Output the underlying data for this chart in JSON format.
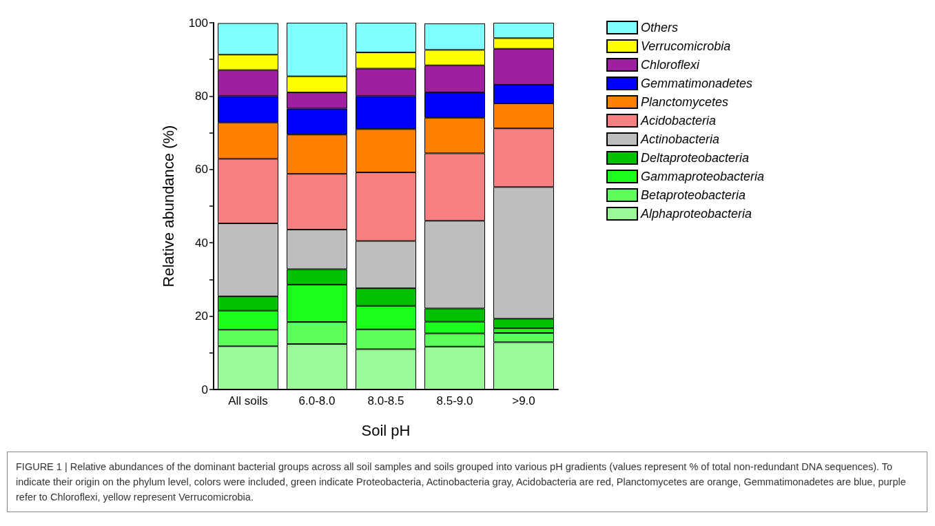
{
  "chart_data": {
    "type": "bar",
    "stacked": true,
    "xlabel": "Soil pH",
    "ylabel": "Relative abundance (%)",
    "categories": [
      "All soils",
      "6.0-8.0",
      "8.0-8.5",
      "8.5-9.0",
      ">9.0"
    ],
    "series": [
      {
        "name": "Alphaproteobacteria",
        "color": "#98fb98",
        "values": [
          11.8,
          12.4,
          11.0,
          11.7,
          12.9
        ]
      },
      {
        "name": "Betaproteobacteria",
        "color": "#5cff5c",
        "values": [
          4.5,
          6.0,
          5.4,
          3.6,
          2.5
        ]
      },
      {
        "name": "Gammaproteobacteria",
        "color": "#19ff19",
        "values": [
          5.2,
          10.2,
          6.4,
          3.2,
          1.3
        ]
      },
      {
        "name": "Deltaproteobacteria",
        "color": "#00c000",
        "values": [
          3.9,
          4.2,
          4.8,
          3.6,
          2.6
        ]
      },
      {
        "name": "Actinobacteria",
        "color": "#bebebe",
        "values": [
          19.9,
          10.8,
          12.9,
          23.9,
          35.9
        ]
      },
      {
        "name": "Acidobacteria",
        "color": "#f88080",
        "values": [
          17.6,
          15.2,
          18.7,
          18.4,
          16.0
        ]
      },
      {
        "name": "Planctomycetes",
        "color": "#ff8000",
        "values": [
          9.9,
          10.7,
          11.8,
          9.7,
          6.8
        ]
      },
      {
        "name": "Gemmatimonadetes",
        "color": "#0000ff",
        "values": [
          7.2,
          7.1,
          9.0,
          6.9,
          5.1
        ]
      },
      {
        "name": "Chloroflexi",
        "color": "#9e1fa0",
        "values": [
          7.1,
          4.4,
          7.5,
          7.4,
          9.8
        ]
      },
      {
        "name": "Verrucomicrobia",
        "color": "#ffff00",
        "values": [
          4.2,
          4.4,
          4.4,
          4.2,
          2.9
        ]
      },
      {
        "name": "Others",
        "color": "#80ffff",
        "values": [
          8.6,
          14.6,
          8.1,
          7.2,
          4.2
        ]
      }
    ],
    "ylim": [
      0,
      100
    ],
    "yticks": [
      0,
      {
        "value": 10,
        "label": null
      },
      20,
      {
        "value": 30,
        "label": null
      },
      40,
      {
        "value": 50,
        "label": null
      },
      60,
      {
        "value": 70,
        "label": null
      },
      80,
      {
        "value": 90,
        "label": null
      },
      100
    ],
    "grid": false,
    "legend": "right",
    "annotations": [
      "FIGURE 1 | Relative abundances of the dominant bacterial groups across all soil samples and soils grouped into various pH gradients (values represent % of total non-redundant DNA sequences). To indicate their origin on the phylum level, colors were included, green indicate Proteobacteria, Actinobacteria gray, Acidobacteria are red, Planctomycetes are orange, Gemmatimonadetes are blue, purple refer to Chloroflexi, yellow represent Verrucomicrobia."
    ]
  }
}
